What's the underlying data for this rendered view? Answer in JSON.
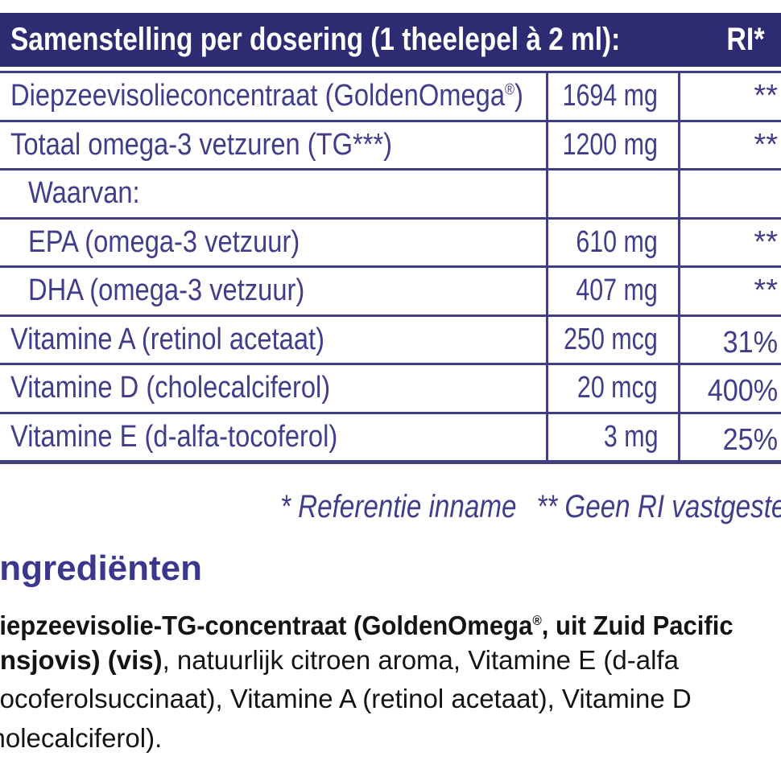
{
  "table": {
    "header": {
      "title": "Samenstelling per dosering (1 theelepel à 2 ml):",
      "ri_label": "RI*"
    },
    "rows": [
      {
        "label": "Diepzeevisolieconcentraat (GoldenOmega",
        "sup": "®",
        "post": ")",
        "amount": "1694 mg",
        "ri": "**",
        "indent": false,
        "pct": false
      },
      {
        "label": "Totaal omega-3 vetzuren (TG***)",
        "sup": "",
        "post": "",
        "amount": "1200 mg",
        "ri": "**",
        "indent": false,
        "pct": false
      },
      {
        "label": "Waarvan:",
        "sup": "",
        "post": "",
        "amount": "",
        "ri": "",
        "indent": true,
        "pct": false
      },
      {
        "label": "EPA (omega-3 vetzuur)",
        "sup": "",
        "post": "",
        "amount": "610 mg",
        "ri": "**",
        "indent": true,
        "pct": false
      },
      {
        "label": "DHA (omega-3 vetzuur)",
        "sup": "",
        "post": "",
        "amount": "407 mg",
        "ri": "**",
        "indent": true,
        "pct": false
      },
      {
        "label": "Vitamine A (retinol acetaat)",
        "sup": "",
        "post": "",
        "amount": "250 mcg",
        "ri": "31%",
        "indent": false,
        "pct": true
      },
      {
        "label": "Vitamine D (cholecalciferol)",
        "sup": "",
        "post": "",
        "amount": "20 mcg",
        "ri": "400%",
        "indent": false,
        "pct": true
      },
      {
        "label": "Vitamine E (d-alfa-tocoferol)",
        "sup": "",
        "post": "",
        "amount": "3 mg",
        "ri": "25%",
        "indent": false,
        "pct": true
      }
    ]
  },
  "footnote": {
    "ref": "* Referentie inname",
    "geen": "** Geen RI vastgesteld"
  },
  "ingredients": {
    "heading": "Ingrediënten",
    "lines": [
      [
        {
          "t": "Diepzeevisolie-TG-concentraat (GoldenOmega",
          "b": true
        },
        {
          "t": "®",
          "b": true,
          "sup": true
        },
        {
          "t": ", uit Zuid Pacific",
          "b": true
        }
      ],
      [
        {
          "t": "ansjovis) (vis)",
          "b": true
        },
        {
          "t": ", natuurlijk citroen aroma, Vitamine E (d-alfa",
          "b": false
        }
      ],
      [
        {
          "t": "tocoferolsuccinaat), Vitamine A (retinol acetaat), Vitamine D",
          "b": false
        }
      ],
      [
        {
          "t": "cholecalciferol).",
          "b": false
        }
      ]
    ]
  }
}
